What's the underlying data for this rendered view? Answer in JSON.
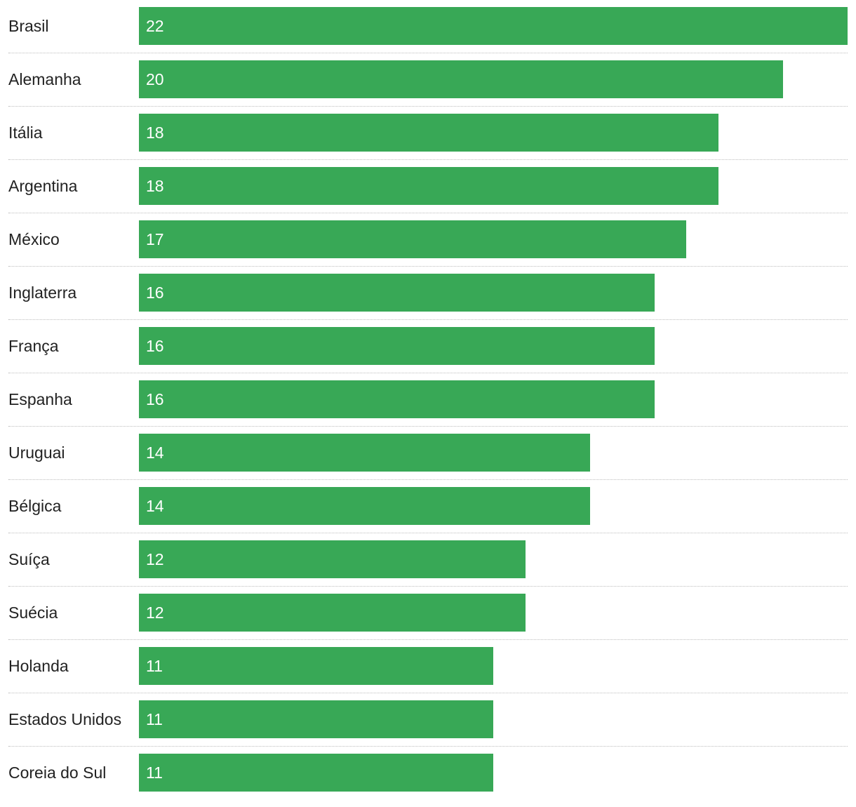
{
  "chart_data": {
    "type": "bar",
    "orientation": "horizontal",
    "categories": [
      "Brasil",
      "Alemanha",
      "Itália",
      "Argentina",
      "México",
      "Inglaterra",
      "França",
      "Espanha",
      "Uruguai",
      "Bélgica",
      "Suíça",
      "Suécia",
      "Holanda",
      "Estados Unidos",
      "Coreia do Sul"
    ],
    "values": [
      22,
      20,
      18,
      18,
      17,
      16,
      16,
      16,
      14,
      14,
      12,
      12,
      11,
      11,
      11
    ],
    "xlim": [
      0,
      22
    ],
    "bar_color": "#38a856",
    "value_label_color": "#ffffff",
    "category_label_color": "#222222",
    "divider_color": "#bdbdbd",
    "grid": false,
    "legend": "none"
  }
}
